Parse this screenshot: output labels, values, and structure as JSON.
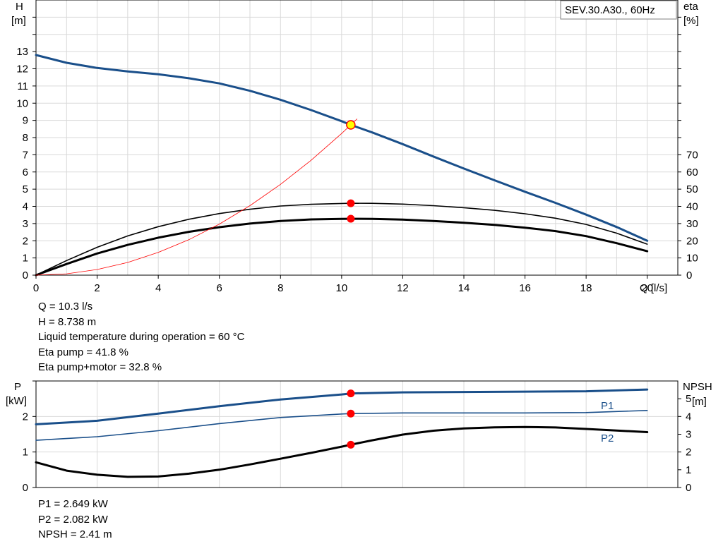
{
  "chart_data": [
    {
      "type": "line",
      "title": "SEV.30.A30., 60Hz",
      "xlabel": "Q [l/s]",
      "ylabel": [
        "H",
        "[m]"
      ],
      "y2label": [
        "eta",
        "[%]"
      ],
      "xlim": [
        0,
        21
      ],
      "ylim": [
        0,
        16
      ],
      "y2lim": [
        0,
        160
      ],
      "xticks": [
        0,
        2,
        4,
        6,
        8,
        10,
        12,
        14,
        16,
        18,
        20
      ],
      "yticks": [
        0,
        1,
        2,
        3,
        4,
        5,
        6,
        7,
        8,
        9,
        10,
        11,
        12,
        13
      ],
      "y2ticks": [
        0,
        10,
        20,
        30,
        40,
        50,
        60,
        70
      ],
      "grid": true,
      "series": [
        {
          "role": "head",
          "color": "#1a4f8a",
          "width": 3,
          "x": [
            0,
            1,
            2,
            3,
            4,
            5,
            6,
            7,
            8,
            9,
            10,
            10.3,
            11,
            12,
            13,
            14,
            15,
            16,
            17,
            18,
            19,
            20
          ],
          "y": [
            12.8,
            12.35,
            12.05,
            11.85,
            11.68,
            11.45,
            11.15,
            10.72,
            10.2,
            9.6,
            8.95,
            8.738,
            8.3,
            7.62,
            6.9,
            6.2,
            5.52,
            4.85,
            4.2,
            3.52,
            2.8,
            2.0
          ]
        },
        {
          "role": "eta pump",
          "axis": "right",
          "color": "#000000",
          "width": 1.6,
          "x": [
            0,
            1,
            2,
            3,
            4,
            5,
            6,
            7,
            8,
            9,
            10,
            10.3,
            11,
            12,
            13,
            14,
            15,
            16,
            17,
            18,
            19,
            20
          ],
          "y": [
            0,
            8.5,
            16.2,
            22.8,
            28.2,
            32.5,
            35.8,
            38.3,
            40.2,
            41.2,
            41.7,
            41.8,
            41.75,
            41.3,
            40.4,
            39.2,
            37.7,
            35.7,
            33.1,
            29.5,
            24.4,
            18.0
          ]
        },
        {
          "role": "eta pump+motor",
          "axis": "right",
          "color": "#000000",
          "width": 3,
          "x": [
            0,
            1,
            2,
            3,
            4,
            5,
            6,
            7,
            8,
            9,
            10,
            10.3,
            11,
            12,
            13,
            14,
            15,
            16,
            17,
            18,
            19,
            20
          ],
          "y": [
            0,
            6.5,
            12.6,
            17.6,
            21.8,
            25.2,
            27.9,
            30.0,
            31.5,
            32.4,
            32.75,
            32.8,
            32.75,
            32.3,
            31.5,
            30.5,
            29.2,
            27.6,
            25.6,
            22.7,
            18.6,
            13.9
          ]
        },
        {
          "role": "system curve",
          "color": "#ff0000",
          "width": 0.8,
          "x": [
            0,
            1,
            2,
            3,
            4,
            5,
            6,
            7,
            8,
            9,
            10,
            10.3,
            10.5
          ],
          "y": [
            0,
            0.08,
            0.33,
            0.74,
            1.32,
            2.06,
            2.97,
            4.04,
            5.28,
            6.68,
            8.24,
            8.738,
            9.08
          ]
        }
      ],
      "operating_point": {
        "Q": 10.3,
        "H": 8.738,
        "eta_pump": 41.8,
        "eta_total": 32.8
      }
    },
    {
      "type": "line",
      "ylabel": [
        "P",
        "[kW]"
      ],
      "y2label": [
        "NPSH",
        "[m]"
      ],
      "xlim": [
        0,
        21
      ],
      "ylim": [
        0,
        3
      ],
      "y2lim": [
        0,
        6
      ],
      "yticks": [
        0,
        1,
        2
      ],
      "y2ticks": [
        0,
        1,
        2,
        3,
        4,
        5
      ],
      "grid": true,
      "series": [
        {
          "name": "P1",
          "color": "#1a4f8a",
          "width": 3,
          "x": [
            0,
            2,
            4,
            6,
            8,
            10,
            10.3,
            12,
            14,
            16,
            18,
            20
          ],
          "y": [
            1.78,
            1.88,
            2.08,
            2.29,
            2.48,
            2.62,
            2.649,
            2.68,
            2.69,
            2.7,
            2.71,
            2.76
          ]
        },
        {
          "name": "P2",
          "color": "#1a4f8a",
          "width": 1.6,
          "x": [
            0,
            2,
            4,
            6,
            8,
            10,
            10.3,
            12,
            14,
            16,
            18,
            20
          ],
          "y": [
            1.33,
            1.43,
            1.6,
            1.8,
            1.97,
            2.07,
            2.082,
            2.1,
            2.1,
            2.1,
            2.11,
            2.17
          ]
        },
        {
          "role": "NPSH",
          "axis": "right",
          "color": "#000000",
          "width": 3,
          "x": [
            0,
            1,
            2,
            3,
            4,
            5,
            6,
            7,
            8,
            9,
            10,
            10.3,
            11,
            12,
            13,
            14,
            15,
            16,
            17,
            18,
            19,
            20
          ],
          "y": [
            1.42,
            0.95,
            0.72,
            0.6,
            0.62,
            0.78,
            1.0,
            1.3,
            1.62,
            1.95,
            2.3,
            2.41,
            2.66,
            2.98,
            3.2,
            3.33,
            3.39,
            3.41,
            3.38,
            3.3,
            3.21,
            3.12
          ]
        }
      ],
      "operating_point": {
        "Q": 10.3,
        "P1": 2.649,
        "P2": 2.082,
        "NPSH": 2.41
      }
    }
  ],
  "readout1": [
    "Q = 10.3 l/s",
    "H = 8.738 m",
    "Liquid temperature during operation = 60 °C",
    "Eta pump = 41.8 %",
    "Eta pump+motor = 32.8 %"
  ],
  "readout2": [
    "P1 = 2.649 kW",
    "P2 = 2.082 kW",
    "NPSH = 2.41 m"
  ]
}
